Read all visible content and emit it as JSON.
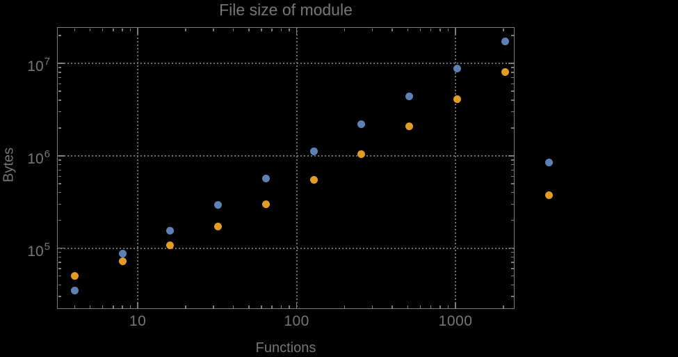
{
  "colors": {
    "background": "#000000",
    "text": "#767676",
    "frame": "#7e7e7e",
    "grid": "#6e6e6e",
    "series_blue": "#5E81B5",
    "series_orange": "#E19C24"
  },
  "chart_data": {
    "type": "scatter",
    "title": "File size of module",
    "xlabel": "Functions",
    "ylabel": "Bytes",
    "xscale": "log",
    "yscale": "log",
    "xlim": [
      3.1,
      2355
    ],
    "ylim": [
      22000,
      24600000
    ],
    "grid": "dotted lines at major ticks only",
    "legend": "none",
    "x_major_ticks": [
      {
        "value": 10,
        "label": "10"
      },
      {
        "value": 100,
        "label": "100"
      },
      {
        "value": 1000,
        "label": "1000"
      }
    ],
    "y_major_ticks": [
      {
        "value": 100000,
        "base": "10",
        "exp": "5"
      },
      {
        "value": 1000000,
        "base": "10",
        "exp": "6"
      },
      {
        "value": 10000000,
        "base": "10",
        "exp": "7"
      }
    ],
    "x_minor_ticks": [
      4,
      5,
      6,
      7,
      8,
      9,
      20,
      30,
      40,
      50,
      60,
      70,
      80,
      90,
      200,
      300,
      400,
      500,
      600,
      700,
      800,
      900,
      2000
    ],
    "y_minor_ticks": [
      30000,
      40000,
      50000,
      60000,
      70000,
      80000,
      90000,
      200000,
      300000,
      400000,
      500000,
      600000,
      700000,
      800000,
      900000,
      2000000,
      3000000,
      4000000,
      5000000,
      6000000,
      7000000,
      8000000,
      9000000,
      20000000
    ],
    "note": "last pair of points (x ~ 3860) is drawn outside the right edge of the frame",
    "series": [
      {
        "name": "series-1-blue",
        "color": "#5E81B5",
        "points": [
          [
            4,
            35000
          ],
          [
            8,
            87000
          ],
          [
            16,
            155000
          ],
          [
            32,
            295000
          ],
          [
            64,
            570000
          ],
          [
            128,
            1120000
          ],
          [
            256,
            2200000
          ],
          [
            512,
            4400000
          ],
          [
            1024,
            8700000
          ],
          [
            2048,
            17300000
          ],
          [
            3860,
            850000
          ]
        ]
      },
      {
        "name": "series-2-orange",
        "color": "#E19C24",
        "points": [
          [
            4,
            50000
          ],
          [
            8,
            72000
          ],
          [
            16,
            107000
          ],
          [
            32,
            172000
          ],
          [
            64,
            300000
          ],
          [
            128,
            550000
          ],
          [
            256,
            1040000
          ],
          [
            512,
            2070000
          ],
          [
            1024,
            4100000
          ],
          [
            2048,
            8100000
          ],
          [
            3860,
            375000
          ]
        ]
      }
    ]
  }
}
